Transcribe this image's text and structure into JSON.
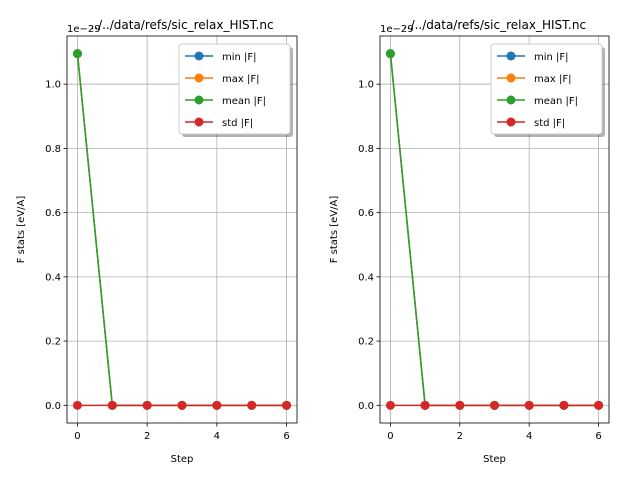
{
  "chart_data": [
    {
      "type": "line",
      "title": "../../data/refs/sic_relax_HIST.nc",
      "xlabel": "Step",
      "ylabel": "F stats [eV/A]",
      "y_offset_label": "1e−29",
      "y_scale_exponent": -29,
      "xlim": [
        -0.3,
        6.3
      ],
      "ylim": [
        -0.055,
        1.15
      ],
      "x_ticks": [
        0,
        2,
        4,
        6
      ],
      "x_tick_labels": [
        "0",
        "2",
        "4",
        "6"
      ],
      "y_ticks": [
        0.0,
        0.2,
        0.4,
        0.6,
        0.8,
        1.0
      ],
      "y_tick_labels": [
        "0.0",
        "0.2",
        "0.4",
        "0.6",
        "0.8",
        "1.0"
      ],
      "grid": true,
      "legend_position": "top-right",
      "x": [
        0,
        1,
        2,
        3,
        4,
        5,
        6
      ],
      "series": [
        {
          "name": "min |F|",
          "color": "#1f77b4",
          "values": [
            1.095,
            0,
            0,
            0,
            0,
            0,
            0
          ]
        },
        {
          "name": "max |F|",
          "color": "#ff7f0e",
          "values": [
            1.095,
            0,
            0,
            0,
            0,
            0,
            0
          ]
        },
        {
          "name": "mean |F|",
          "color": "#2ca02c",
          "values": [
            1.095,
            0,
            0,
            0,
            0,
            0,
            0
          ]
        },
        {
          "name": "std |F|",
          "color": "#d62728",
          "values": [
            0,
            0,
            0,
            0,
            0,
            0,
            0
          ]
        }
      ]
    },
    {
      "type": "line",
      "title": "../../data/refs/sic_relax_HIST.nc",
      "xlabel": "Step",
      "ylabel": "F stats [eV/A]",
      "y_offset_label": "1e−29",
      "y_scale_exponent": -29,
      "xlim": [
        -0.3,
        6.3
      ],
      "ylim": [
        -0.055,
        1.15
      ],
      "x_ticks": [
        0,
        2,
        4,
        6
      ],
      "x_tick_labels": [
        "0",
        "2",
        "4",
        "6"
      ],
      "y_ticks": [
        0.0,
        0.2,
        0.4,
        0.6,
        0.8,
        1.0
      ],
      "y_tick_labels": [
        "0.0",
        "0.2",
        "0.4",
        "0.6",
        "0.8",
        "1.0"
      ],
      "grid": true,
      "legend_position": "top-right",
      "x": [
        0,
        1,
        2,
        3,
        4,
        5,
        6
      ],
      "series": [
        {
          "name": "min |F|",
          "color": "#1f77b4",
          "values": [
            1.095,
            0,
            0,
            0,
            0,
            0,
            0
          ]
        },
        {
          "name": "max |F|",
          "color": "#ff7f0e",
          "values": [
            1.095,
            0,
            0,
            0,
            0,
            0,
            0
          ]
        },
        {
          "name": "mean |F|",
          "color": "#2ca02c",
          "values": [
            1.095,
            0,
            0,
            0,
            0,
            0,
            0
          ]
        },
        {
          "name": "std |F|",
          "color": "#d62728",
          "values": [
            0,
            0,
            0,
            0,
            0,
            0,
            0
          ]
        }
      ]
    }
  ]
}
